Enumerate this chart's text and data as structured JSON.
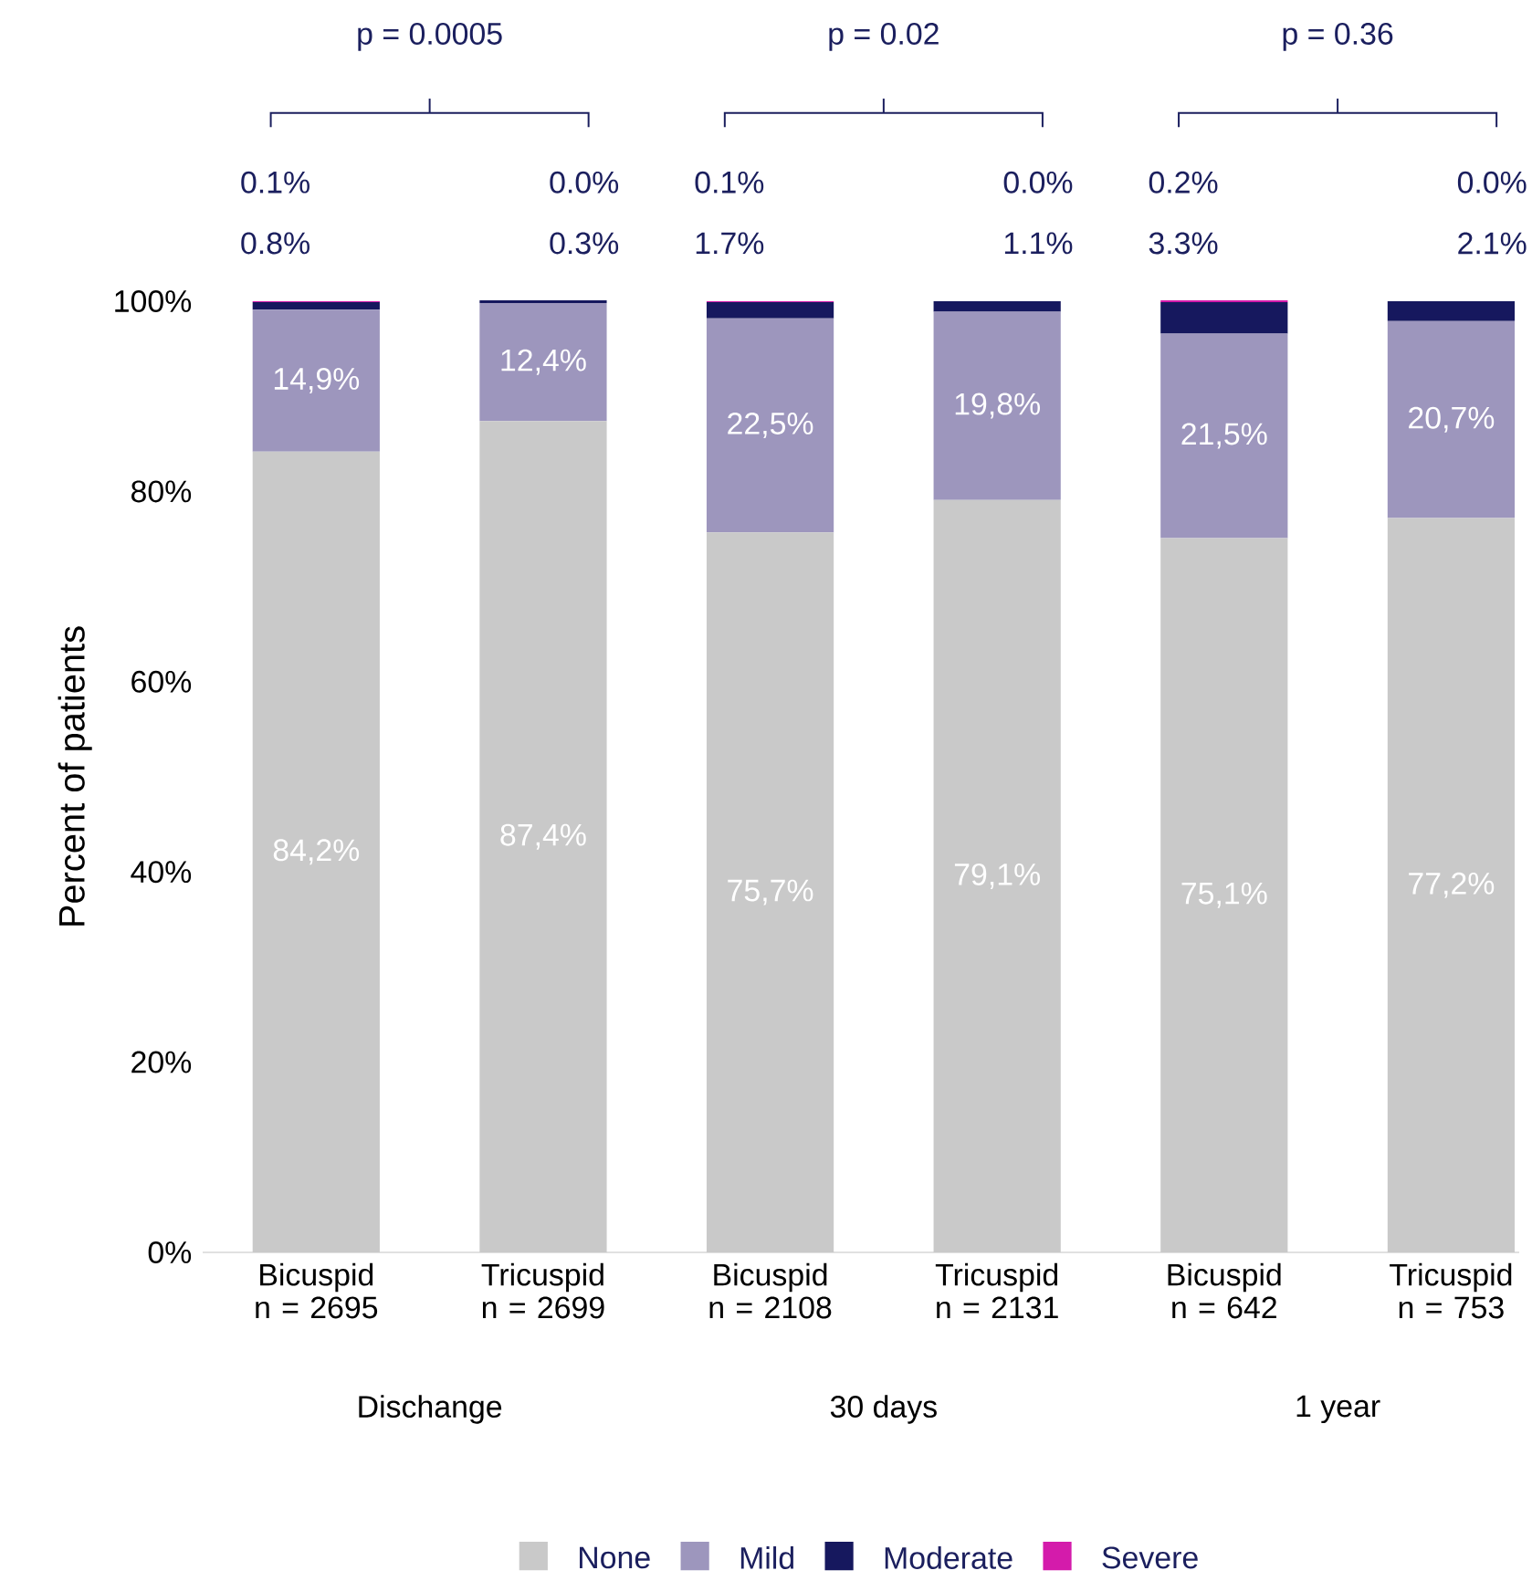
{
  "chart_data": {
    "type": "bar",
    "stacked": true,
    "ylabel": "Percent of patients",
    "categories": [
      "Bicuspid n = 2695",
      "Tricuspid n = 2699",
      "Bicuspid n = 2108",
      "Tricuspid n = 2131",
      "Bicuspid n = 642",
      "Tricuspid n = 753"
    ],
    "series": [
      {
        "name": "None",
        "color": "#c9c9c9",
        "values": [
          84.2,
          87.4,
          75.7,
          79.1,
          75.1,
          77.2
        ],
        "value_labels": [
          "84,2%",
          "87,4%",
          "75,7%",
          "79,1%",
          "75,1%",
          "77,2%"
        ]
      },
      {
        "name": "Mild",
        "color": "#9d96bd",
        "values": [
          14.9,
          12.4,
          22.5,
          19.8,
          21.5,
          20.7
        ],
        "value_labels": [
          "14,9%",
          "12,4%",
          "22,5%",
          "19,8%",
          "21,5%",
          "20,7%"
        ]
      },
      {
        "name": "Moderate",
        "color": "#16185e",
        "values": [
          0.8,
          0.3,
          1.7,
          1.1,
          3.3,
          2.1
        ],
        "value_labels": [
          "0.8%",
          "0.3%",
          "1.7%",
          "1.1%",
          "3.3%",
          "2.1%"
        ]
      },
      {
        "name": "Severe",
        "color": "#d41bab",
        "values": [
          0.1,
          0.0,
          0.1,
          0.0,
          0.2,
          0.0
        ],
        "value_labels": [
          "0.1%",
          "0.0%",
          "0.1%",
          "0.0%",
          "0.2%",
          "0.0%"
        ]
      }
    ],
    "ylim": [
      0,
      100
    ],
    "yticks": [
      {
        "value": 0,
        "label": "0%"
      },
      {
        "value": 20,
        "label": "20%"
      },
      {
        "value": 40,
        "label": "40%"
      },
      {
        "value": 60,
        "label": "60%"
      },
      {
        "value": 80,
        "label": "80%"
      },
      {
        "value": 100,
        "label": "100%"
      }
    ],
    "annotations": [
      "p = 0.0005",
      "p = 0.02",
      "p = 0.36",
      "Dischange",
      "30 days",
      "1 year"
    ],
    "legend": "bottom"
  }
}
